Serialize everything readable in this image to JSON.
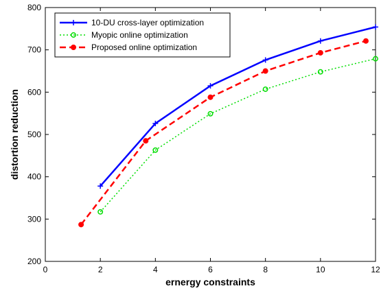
{
  "chart_data": {
    "type": "line",
    "title": "",
    "xlabel": "ernergy constraints",
    "ylabel": "distortion reduction",
    "xlim": [
      0,
      12
    ],
    "ylim": [
      200,
      800
    ],
    "xticks": [
      "0",
      "2",
      "4",
      "6",
      "8",
      "10",
      "12"
    ],
    "yticks": [
      "200",
      "300",
      "400",
      "500",
      "600",
      "700",
      "800"
    ],
    "grid": false,
    "legend_position": "top-left",
    "series": [
      {
        "name": "10-DU cross-layer optimization",
        "color": "#0000ff",
        "line_style": "solid",
        "marker": "plus",
        "points": [
          [
            2,
            378
          ],
          [
            4,
            526
          ],
          [
            6,
            615
          ],
          [
            8,
            676
          ],
          [
            10,
            721
          ],
          [
            12,
            754
          ]
        ]
      },
      {
        "name": "Myopic online optimization",
        "color": "#00dd00",
        "line_style": "dotted",
        "marker": "circle",
        "points": [
          [
            2,
            317
          ],
          [
            4,
            463
          ],
          [
            6,
            549
          ],
          [
            8,
            607
          ],
          [
            10,
            648
          ],
          [
            12,
            679
          ]
        ]
      },
      {
        "name": "Proposed online optimization",
        "color": "#ff0000",
        "line_style": "dashed",
        "marker": "filled-circle",
        "points": [
          [
            1.3,
            287
          ],
          [
            3.65,
            485
          ],
          [
            6,
            588
          ],
          [
            8,
            650
          ],
          [
            10,
            693
          ],
          [
            11.65,
            721
          ]
        ]
      }
    ]
  }
}
